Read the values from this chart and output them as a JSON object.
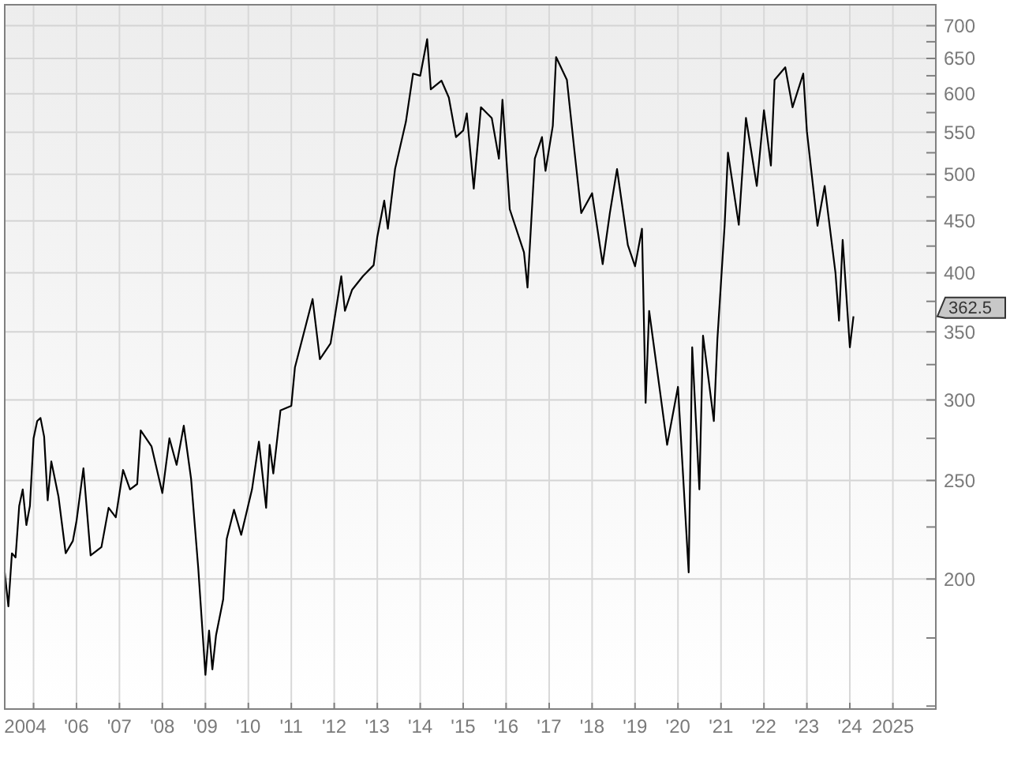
{
  "chart_data": {
    "type": "line",
    "log": "y",
    "grid": true,
    "marker": "none",
    "line_style": "solid",
    "x": [
      "2004-05",
      "2004-06",
      "2004-07",
      "2004-08",
      "2004-09",
      "2004-10",
      "2004-11",
      "2004-12",
      "2005-01",
      "2005-02",
      "2005-03",
      "2005-04",
      "2005-05",
      "2005-06",
      "2005-08",
      "2005-10",
      "2005-12",
      "2006-01",
      "2006-03",
      "2006-05",
      "2006-08",
      "2006-10",
      "2006-12",
      "2007-02",
      "2007-04",
      "2007-06",
      "2007-07",
      "2007-10",
      "2008-01",
      "2008-03",
      "2008-05",
      "2008-07",
      "2008-09",
      "2008-11",
      "2009-01",
      "2009-02",
      "2009-03",
      "2009-04",
      "2009-06",
      "2009-07",
      "2009-09",
      "2009-11",
      "2010-02",
      "2010-04",
      "2010-06",
      "2010-07",
      "2010-08",
      "2010-10",
      "2011-01",
      "2011-02",
      "2011-05",
      "2011-07",
      "2011-09",
      "2011-12",
      "2012-03",
      "2012-04",
      "2012-06",
      "2012-09",
      "2012-12",
      "2013-01",
      "2013-03",
      "2013-04",
      "2013-06",
      "2013-09",
      "2013-11",
      "2014-01",
      "2014-03",
      "2014-04",
      "2014-07",
      "2014-09",
      "2014-11",
      "2015-01",
      "2015-02",
      "2015-04",
      "2015-06",
      "2015-09",
      "2015-11",
      "2015-12",
      "2016-02",
      "2016-06",
      "2016-07",
      "2016-09",
      "2016-11",
      "2016-12",
      "2017-02",
      "2017-03",
      "2017-06",
      "2017-08",
      "2017-10",
      "2018-01",
      "2018-04",
      "2018-06",
      "2018-08",
      "2018-11",
      "2019-01",
      "2019-03",
      "2019-04",
      "2019-05",
      "2019-08",
      "2019-10",
      "2020-01",
      "2020-04",
      "2020-05",
      "2020-07",
      "2020-08",
      "2020-11",
      "2020-12",
      "2021-02",
      "2021-03",
      "2021-06",
      "2021-08",
      "2021-11",
      "2022-01",
      "2022-03",
      "2022-04",
      "2022-07",
      "2022-09",
      "2022-12",
      "2023-01",
      "2023-04",
      "2023-06",
      "2023-09",
      "2023-10",
      "2023-11",
      "2024-01",
      "2024-02"
    ],
    "series": [
      {
        "color": "#000000",
        "values": [
          203,
          188,
          212,
          210,
          236,
          245,
          226,
          236,
          275,
          286,
          288,
          276,
          239,
          261,
          241,
          212,
          218,
          228,
          257,
          211,
          215,
          235,
          230,
          256,
          245,
          248,
          280,
          270,
          243,
          275,
          259,
          283,
          251,
          205,
          161,
          178,
          163,
          176,
          191,
          219,
          234,
          221,
          245,
          273,
          235,
          271,
          254,
          293,
          296,
          323,
          354,
          377,
          329,
          341,
          397,
          367,
          385,
          397,
          407,
          434,
          471,
          442,
          506,
          563,
          628,
          625,
          679,
          606,
          618,
          595,
          544,
          552,
          574,
          484,
          582,
          568,
          518,
          592,
          462,
          419,
          387,
          518,
          544,
          504,
          558,
          652,
          619,
          531,
          458,
          479,
          408,
          458,
          506,
          426,
          406,
          442,
          298,
          367,
          306,
          271,
          309,
          203,
          338,
          245,
          347,
          286,
          344,
          446,
          525,
          446,
          568,
          487,
          578,
          510,
          619,
          637,
          582,
          628,
          551,
          445,
          487,
          400,
          359,
          431,
          338,
          362.5
        ]
      }
    ],
    "xlim": [
      "2004-05",
      "2026-01"
    ],
    "xticks": [
      {
        "value": "2004-05",
        "label": "2004"
      },
      {
        "value": "2005",
        "label": null
      },
      {
        "value": "2006",
        "label": "'06"
      },
      {
        "value": "2007",
        "label": "'07"
      },
      {
        "value": "2008",
        "label": "'08"
      },
      {
        "value": "2009",
        "label": "'09"
      },
      {
        "value": "2010",
        "label": "'10"
      },
      {
        "value": "2011",
        "label": "'11"
      },
      {
        "value": "2012",
        "label": "'12"
      },
      {
        "value": "2013",
        "label": "'13"
      },
      {
        "value": "2014",
        "label": "'14"
      },
      {
        "value": "2015",
        "label": "'15"
      },
      {
        "value": "2016",
        "label": "'16"
      },
      {
        "value": "2017",
        "label": "'17"
      },
      {
        "value": "2018",
        "label": "'18"
      },
      {
        "value": "2019",
        "label": "'19"
      },
      {
        "value": "2020",
        "label": "'20"
      },
      {
        "value": "2021",
        "label": "'21"
      },
      {
        "value": "2022",
        "label": "'22"
      },
      {
        "value": "2023",
        "label": "'23"
      },
      {
        "value": "2024",
        "label": "'24"
      },
      {
        "value": "2025",
        "label": "2025"
      }
    ],
    "ylim": [
      149,
      734
    ],
    "yticks": [
      {
        "value": 150,
        "label": null
      },
      {
        "value": 175,
        "label": null
      },
      200,
      {
        "value": 225,
        "label": null
      },
      250,
      {
        "value": 275,
        "label": null
      },
      300,
      {
        "value": 325,
        "label": null
      },
      350,
      {
        "value": 375,
        "label": null
      },
      400,
      {
        "value": 425,
        "label": null
      },
      450,
      {
        "value": 475,
        "label": null
      },
      500,
      {
        "value": 525,
        "label": null
      },
      550,
      {
        "value": 575,
        "label": null
      },
      600,
      {
        "value": 625,
        "label": null
      },
      650,
      {
        "value": 675,
        "label": null
      },
      700
    ],
    "annotations": [
      "362.5"
    ]
  }
}
